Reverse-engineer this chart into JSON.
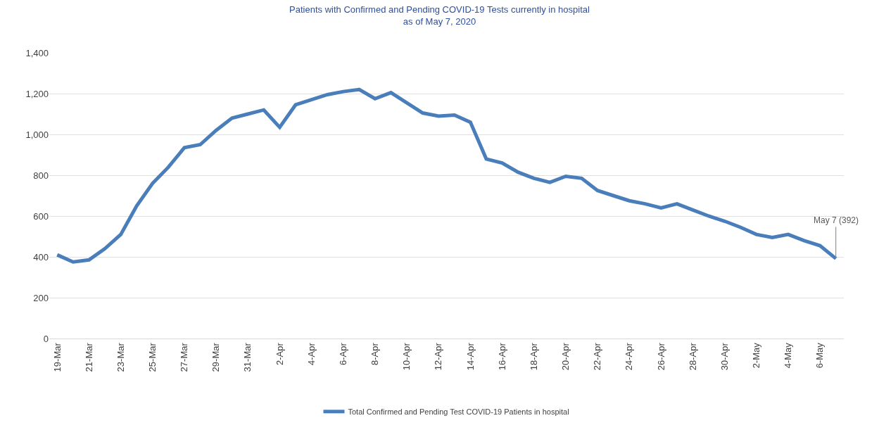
{
  "chart_data": {
    "type": "line",
    "title": "Patients with Confirmed and Pending COVID-19 Tests currently in hospital",
    "subtitle": "as of May 7, 2020",
    "x": [
      "2020-03-19",
      "2020-03-20",
      "2020-03-21",
      "2020-03-22",
      "2020-03-23",
      "2020-03-24",
      "2020-03-25",
      "2020-03-26",
      "2020-03-27",
      "2020-03-28",
      "2020-03-29",
      "2020-03-30",
      "2020-03-31",
      "2020-04-01",
      "2020-04-02",
      "2020-04-03",
      "2020-04-04",
      "2020-04-05",
      "2020-04-06",
      "2020-04-07",
      "2020-04-08",
      "2020-04-09",
      "2020-04-10",
      "2020-04-11",
      "2020-04-12",
      "2020-04-13",
      "2020-04-14",
      "2020-04-15",
      "2020-04-16",
      "2020-04-17",
      "2020-04-18",
      "2020-04-19",
      "2020-04-20",
      "2020-04-21",
      "2020-04-22",
      "2020-04-23",
      "2020-04-24",
      "2020-04-25",
      "2020-04-26",
      "2020-04-27",
      "2020-04-28",
      "2020-04-29",
      "2020-04-30",
      "2020-05-01",
      "2020-05-02",
      "2020-05-03",
      "2020-05-04",
      "2020-05-05",
      "2020-05-06",
      "2020-05-07"
    ],
    "series": [
      {
        "name": "Total Confirmed and Pending Test COVID-19 Patients in hospital",
        "color": "#4a7ebb",
        "values": [
          410,
          375,
          385,
          440,
          510,
          650,
          760,
          840,
          935,
          950,
          1020,
          1080,
          1100,
          1120,
          1035,
          1145,
          1170,
          1195,
          1210,
          1220,
          1175,
          1205,
          1155,
          1105,
          1090,
          1095,
          1060,
          880,
          860,
          815,
          785,
          765,
          795,
          785,
          725,
          700,
          675,
          660,
          640,
          660,
          630,
          600,
          575,
          545,
          510,
          495,
          510,
          480,
          455,
          392
        ]
      }
    ],
    "xlim": [
      "2020-03-18T12:00",
      "2020-05-07T12:00"
    ],
    "xticks": [
      {
        "value": "2020-03-19",
        "label": "19-Mar"
      },
      {
        "value": "2020-03-21",
        "label": "21-Mar"
      },
      {
        "value": "2020-03-23",
        "label": "23-Mar"
      },
      {
        "value": "2020-03-25",
        "label": "25-Mar"
      },
      {
        "value": "2020-03-27",
        "label": "27-Mar"
      },
      {
        "value": "2020-03-29",
        "label": "29-Mar"
      },
      {
        "value": "2020-03-31",
        "label": "31-Mar"
      },
      {
        "value": "2020-04-02",
        "label": "2-Apr"
      },
      {
        "value": "2020-04-04",
        "label": "4-Apr"
      },
      {
        "value": "2020-04-06",
        "label": "6-Apr"
      },
      {
        "value": "2020-04-08",
        "label": "8-Apr"
      },
      {
        "value": "2020-04-10",
        "label": "10-Apr"
      },
      {
        "value": "2020-04-12",
        "label": "12-Apr"
      },
      {
        "value": "2020-04-14",
        "label": "14-Apr"
      },
      {
        "value": "2020-04-16",
        "label": "16-Apr"
      },
      {
        "value": "2020-04-18",
        "label": "18-Apr"
      },
      {
        "value": "2020-04-20",
        "label": "20-Apr"
      },
      {
        "value": "2020-04-22",
        "label": "22-Apr"
      },
      {
        "value": "2020-04-24",
        "label": "24-Apr"
      },
      {
        "value": "2020-04-26",
        "label": "26-Apr"
      },
      {
        "value": "2020-04-28",
        "label": "28-Apr"
      },
      {
        "value": "2020-04-30",
        "label": "30-Apr"
      },
      {
        "value": "2020-05-02",
        "label": "2-May"
      },
      {
        "value": "2020-05-04",
        "label": "4-May"
      },
      {
        "value": "2020-05-06",
        "label": "6-May"
      }
    ],
    "ylim": [
      0,
      1400
    ],
    "yticks": [
      0,
      {
        "value": 200,
        "label": "200"
      },
      {
        "value": 400,
        "label": "400"
      },
      {
        "value": 600,
        "label": "600"
      },
      {
        "value": 800,
        "label": "800"
      },
      {
        "value": 1000,
        "label": "1,000"
      },
      {
        "value": 1200,
        "label": "1,200"
      },
      {
        "value": 1400,
        "label": "1,400"
      }
    ],
    "annotations": [
      {
        "text": "May 7 (392)",
        "x": "2020-05-07",
        "y": 392
      }
    ],
    "grid": "y",
    "legend": "bottom",
    "marker": "none",
    "line_style": "solid"
  }
}
